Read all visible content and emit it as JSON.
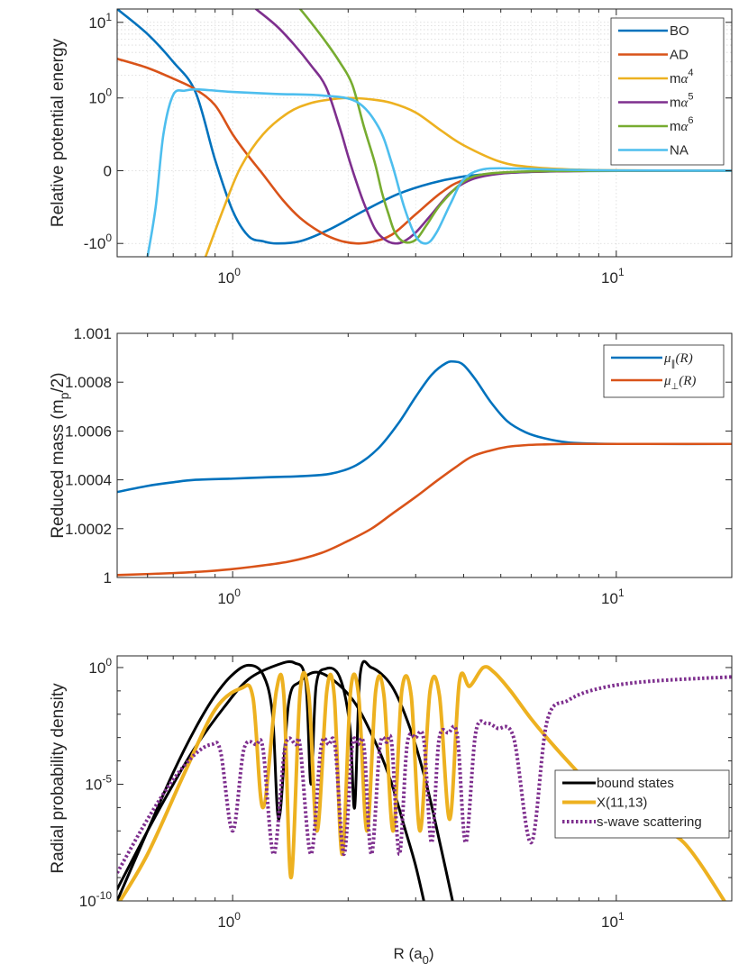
{
  "chart_data": [
    {
      "type": "line",
      "title": "",
      "xlabel": "",
      "ylabel": "Relative potential energy",
      "xscale": "log",
      "xlim": [
        0.5,
        20
      ],
      "yscale": "symlog",
      "ylim": [
        -1.5,
        15
      ],
      "grid": true,
      "legend_position": "top-right",
      "x_ticks": [
        {
          "value": 1,
          "base": "10",
          "exp": "0"
        },
        {
          "value": 10,
          "base": "10",
          "exp": "1"
        }
      ],
      "y_ticks": [
        {
          "value": -1,
          "label": "-10",
          "exp": "0"
        },
        {
          "value": 0,
          "label": "0",
          "exp": ""
        },
        {
          "value": 1,
          "label": "10",
          "exp": "0"
        },
        {
          "value": 10,
          "label": "10",
          "exp": "1"
        }
      ],
      "series": [
        {
          "name": "BO",
          "color": "#0072bd",
          "x": [
            0.5,
            0.6,
            0.7,
            0.8,
            0.9,
            1.0,
            1.1,
            1.2,
            1.3,
            1.5,
            1.8,
            2.2,
            2.7,
            3.3,
            4.0,
            5.0,
            6.5,
            8.5,
            12,
            20
          ],
          "y": [
            15,
            7,
            3,
            1.2,
            0.15,
            -0.55,
            -0.9,
            -0.97,
            -1.0,
            -0.97,
            -0.8,
            -0.55,
            -0.32,
            -0.17,
            -0.08,
            -0.035,
            -0.012,
            -0.004,
            -0.001,
            0
          ]
        },
        {
          "name": "AD",
          "color": "#d95319",
          "x": [
            0.5,
            0.6,
            0.7,
            0.8,
            0.9,
            1.0,
            1.1,
            1.2,
            1.35,
            1.5,
            1.7,
            1.9,
            2.1,
            2.3,
            2.6,
            3.0,
            3.5,
            4.0,
            5.0,
            6.5,
            8.5,
            12,
            20
          ],
          "y": [
            3.3,
            2.5,
            1.8,
            1.3,
            0.9,
            0.5,
            0.2,
            -0.05,
            -0.4,
            -0.65,
            -0.85,
            -0.96,
            -1.0,
            -0.98,
            -0.88,
            -0.6,
            -0.3,
            -0.13,
            -0.035,
            -0.01,
            -0.003,
            -0.001,
            0
          ]
        },
        {
          "name": "mα4",
          "color": "#edb120",
          "x": [
            0.85,
            0.95,
            1.05,
            1.2,
            1.4,
            1.6,
            1.8,
            2.0,
            2.3,
            2.6,
            3.0,
            3.5,
            4.0,
            5.0,
            6.0,
            7.5,
            10,
            14,
            20
          ],
          "y": [
            -1.5,
            -0.5,
            0.05,
            0.5,
            0.8,
            0.93,
            0.98,
            1.0,
            0.98,
            0.93,
            0.8,
            0.55,
            0.35,
            0.12,
            0.05,
            0.018,
            0.005,
            0.001,
            0
          ]
        },
        {
          "name": "mα5",
          "color": "#7e2f8e",
          "x": [
            1.15,
            1.3,
            1.45,
            1.6,
            1.75,
            1.9,
            2.0,
            2.1,
            2.2,
            2.35,
            2.5,
            2.65,
            2.8,
            3.0,
            3.3,
            3.7,
            4.2,
            5.0,
            6.5,
            9,
            13,
            20
          ],
          "y": [
            15,
            9,
            5,
            2.7,
            1.4,
            0.6,
            0.2,
            -0.15,
            -0.45,
            -0.8,
            -0.95,
            -1.0,
            -0.97,
            -0.85,
            -0.6,
            -0.3,
            -0.12,
            -0.04,
            -0.01,
            -0.002,
            0,
            0
          ]
        },
        {
          "name": "mα6",
          "color": "#77ac30",
          "x": [
            1.5,
            1.6,
            1.75,
            1.9,
            2.05,
            2.2,
            2.35,
            2.45,
            2.55,
            2.65,
            2.8,
            3.0,
            3.2,
            3.5,
            4.0,
            4.5,
            5.5,
            7,
            10,
            20
          ],
          "y": [
            15,
            10,
            5.5,
            3,
            1.5,
            0.6,
            0.1,
            -0.3,
            -0.6,
            -0.85,
            -0.98,
            -0.95,
            -0.75,
            -0.45,
            -0.15,
            -0.05,
            -0.015,
            -0.004,
            -0.001,
            0
          ]
        },
        {
          "name": "NA",
          "color": "#4dbeee",
          "x": [
            0.6,
            0.63,
            0.66,
            0.7,
            0.75,
            0.8,
            0.9,
            1.0,
            1.3,
            1.7,
            2.1,
            2.4,
            2.6,
            2.8,
            3.0,
            3.2,
            3.4,
            3.7,
            4.0,
            4.5,
            5.5,
            7,
            10,
            20
          ],
          "y": [
            -1.5,
            -0.5,
            0.5,
            1.1,
            1.25,
            1.3,
            1.25,
            1.2,
            1.13,
            1.08,
            0.95,
            0.6,
            0.1,
            -0.5,
            -0.9,
            -1.0,
            -0.85,
            -0.45,
            -0.12,
            0.02,
            0.03,
            0.015,
            0.004,
            0
          ]
        }
      ]
    },
    {
      "type": "line",
      "title": "",
      "xlabel": "",
      "ylabel": "Reduced mass (m",
      "ylabel_sub": "p",
      "ylabel_tail": "/2)",
      "xscale": "log",
      "xlim": [
        0.5,
        20
      ],
      "yscale": "linear",
      "ylim": [
        1.0,
        1.001
      ],
      "grid": false,
      "legend_position": "top-right",
      "x_ticks": [
        {
          "value": 1,
          "base": "10",
          "exp": "0"
        },
        {
          "value": 10,
          "base": "10",
          "exp": "1"
        }
      ],
      "y_ticks": [
        {
          "value": 1.0,
          "label": "1"
        },
        {
          "value": 1.0002,
          "label": "1.0002"
        },
        {
          "value": 1.0004,
          "label": "1.0004"
        },
        {
          "value": 1.0006,
          "label": "1.0006"
        },
        {
          "value": 1.0008,
          "label": "1.0008"
        },
        {
          "value": 1.001,
          "label": "1.001"
        }
      ],
      "series": [
        {
          "name": "μ∥(R)",
          "symbol": "μ",
          "sub": "∥",
          "arg": "(R)",
          "color": "#0072bd",
          "x": [
            0.5,
            0.6,
            0.7,
            0.8,
            1.0,
            1.2,
            1.5,
            1.8,
            2.1,
            2.4,
            2.7,
            3.0,
            3.3,
            3.6,
            3.8,
            4.0,
            4.3,
            4.7,
            5.2,
            5.8,
            6.5,
            7.5,
            9,
            12,
            20
          ],
          "y": [
            1.00035,
            1.000375,
            1.00039,
            1.0004,
            1.000405,
            1.00041,
            1.000415,
            1.000425,
            1.00046,
            1.00053,
            1.00063,
            1.00074,
            1.00083,
            1.000878,
            1.000884,
            1.00087,
            1.00081,
            1.00072,
            1.00064,
            1.000595,
            1.00057,
            1.000553,
            1.000548,
            1.000547,
            1.000547
          ]
        },
        {
          "name": "μ⊥(R)",
          "symbol": "μ",
          "sub": "⊥",
          "arg": "(R)",
          "color": "#d95319",
          "x": [
            0.5,
            0.7,
            0.9,
            1.1,
            1.4,
            1.7,
            2.0,
            2.3,
            2.6,
            3.0,
            3.4,
            3.8,
            4.2,
            4.7,
            5.2,
            5.8,
            6.5,
            7.5,
            9,
            12,
            20
          ],
          "y": [
            1.00001,
            1.000018,
            1.000028,
            1.000042,
            1.000065,
            1.0001,
            1.00015,
            1.0002,
            1.00026,
            1.00033,
            1.000395,
            1.00045,
            1.000495,
            1.00052,
            1.000535,
            1.000542,
            1.000545,
            1.000547,
            1.000547,
            1.000547,
            1.000547
          ]
        }
      ]
    },
    {
      "type": "line",
      "title": "",
      "xlabel": "R (a",
      "xlabel_sub": "0",
      "xlabel_tail": ")",
      "ylabel": "Radial probability density",
      "xscale": "log",
      "xlim": [
        0.5,
        20
      ],
      "yscale": "log",
      "ylim_log10": [
        -10,
        0.5
      ],
      "grid": false,
      "legend_position": "bottom-right",
      "x_ticks": [
        {
          "value": 1,
          "base": "10",
          "exp": "0"
        },
        {
          "value": 10,
          "base": "10",
          "exp": "1"
        }
      ],
      "y_ticks": [
        {
          "log10": 0,
          "base": "10",
          "exp": "0"
        },
        {
          "log10": -5,
          "base": "10",
          "exp": "-5"
        },
        {
          "log10": -10,
          "base": "10",
          "exp": "-10"
        }
      ],
      "series": [
        {
          "name": "bound states",
          "color": "#000000",
          "style": "solid",
          "width": 3,
          "legend": true,
          "x": [
            0.5,
            0.6,
            0.7,
            0.8,
            0.9,
            1.0,
            1.1,
            1.2,
            1.27,
            1.32,
            1.4,
            1.5,
            1.65,
            1.85,
            2.1,
            2.4,
            2.6,
            2.8,
            3.0,
            3.2
          ],
          "ylog": [
            -10,
            -7,
            -4.5,
            -2.6,
            -1.2,
            -0.3,
            0.1,
            -0.3,
            -2.0,
            -6.5,
            -1.5,
            -0.6,
            -0.2,
            -0.6,
            -1.6,
            -3.5,
            -5.0,
            -6.8,
            -8.5,
            -10.5
          ]
        },
        {
          "name": "bound states (b)",
          "color": "#000000",
          "style": "solid",
          "width": 3,
          "legend": false,
          "x": [
            0.5,
            0.6,
            0.7,
            0.8,
            0.95,
            1.1,
            1.3,
            1.45,
            1.55,
            1.6,
            1.65,
            1.75,
            1.9,
            2.02,
            2.08,
            2.15,
            2.3,
            2.6,
            2.9,
            3.2,
            3.5,
            3.8
          ],
          "ylog": [
            -9.5,
            -7.0,
            -5.0,
            -3.4,
            -1.7,
            -0.5,
            0.1,
            0.2,
            -0.6,
            -5.0,
            -0.8,
            -0.05,
            -0.4,
            -2.5,
            -6.0,
            -0.3,
            0.0,
            -0.8,
            -2.6,
            -5.0,
            -7.8,
            -10.5
          ]
        },
        {
          "name": "X(11,13)",
          "color": "#edb120",
          "style": "solid",
          "width": 4,
          "legend": true,
          "x": [
            0.5,
            0.6,
            0.75,
            0.9,
            1.05,
            1.13,
            1.2,
            1.3,
            1.36,
            1.42,
            1.5,
            1.58,
            1.66,
            1.76,
            1.84,
            1.93,
            2.03,
            2.13,
            2.24,
            2.36,
            2.48,
            2.62,
            2.76,
            2.92,
            3.08,
            3.27,
            3.46,
            3.68,
            3.9,
            4.15,
            4.5,
            4.8,
            5.3,
            6.0,
            7.0,
            8.5,
            10,
            12,
            15,
            20
          ],
          "ylog": [
            -10.2,
            -8.0,
            -4.5,
            -1.8,
            -0.9,
            -1.3,
            -6.0,
            -1.0,
            -1.2,
            -9.0,
            -1.0,
            -1.2,
            -7.0,
            -1.0,
            -1.2,
            -8.0,
            -1.0,
            -1.2,
            -7.0,
            -1.0,
            -1.2,
            -7.0,
            -1.0,
            -1.2,
            -7.0,
            -1.0,
            -1.2,
            -6.5,
            -0.6,
            -0.8,
            0.0,
            -0.2,
            -1.0,
            -2.2,
            -3.5,
            -5.0,
            -6.2,
            -6.8,
            -7.5,
            -10.5
          ]
        },
        {
          "name": "s-wave scattering",
          "color": "#7e2f8e",
          "style": "dotted",
          "width": 4,
          "legend": true,
          "x": [
            0.5,
            0.6,
            0.7,
            0.8,
            0.88,
            0.93,
            1.0,
            1.07,
            1.15,
            1.2,
            1.28,
            1.37,
            1.46,
            1.5,
            1.6,
            1.7,
            1.78,
            1.85,
            1.95,
            2.05,
            2.12,
            2.2,
            2.3,
            2.42,
            2.52,
            2.6,
            2.72,
            2.85,
            3.0,
            3.15,
            3.3,
            3.45,
            3.65,
            3.85,
            4.05,
            4.3,
            4.6,
            4.9,
            5.4,
            6.0,
            6.6,
            7.5,
            9,
            12,
            20
          ],
          "ylog": [
            -8.8,
            -6.5,
            -4.8,
            -3.7,
            -3.3,
            -3.6,
            -7.0,
            -3.5,
            -3.3,
            -3.5,
            -8.0,
            -3.4,
            -3.3,
            -3.4,
            -8.0,
            -3.4,
            -3.3,
            -3.4,
            -8.0,
            -3.4,
            -3.3,
            -3.4,
            -8.0,
            -3.4,
            -3.2,
            -3.3,
            -8.0,
            -3.3,
            -3.0,
            -3.1,
            -7.5,
            -3.1,
            -2.8,
            -2.9,
            -7.5,
            -2.8,
            -2.4,
            -2.6,
            -3.0,
            -7.5,
            -2.3,
            -1.4,
            -0.9,
            -0.6,
            -0.4
          ]
        }
      ]
    }
  ],
  "legends": [
    {
      "entries": [
        {
          "kind": "plain",
          "text": "BO"
        },
        {
          "kind": "plain",
          "text": "AD"
        },
        {
          "kind": "malpha",
          "m": "m",
          "alpha": "α",
          "exp": "4"
        },
        {
          "kind": "malpha",
          "m": "m",
          "alpha": "α",
          "exp": "5"
        },
        {
          "kind": "malpha",
          "m": "m",
          "alpha": "α",
          "exp": "6"
        },
        {
          "kind": "plain",
          "text": "NA"
        }
      ]
    },
    {
      "entries": [
        {
          "kind": "mu",
          "mu": "μ",
          "sub": "∥",
          "arg": "(R)"
        },
        {
          "kind": "mu",
          "mu": "μ",
          "sub": "⊥",
          "arg": "(R)"
        }
      ]
    },
    {
      "entries": [
        {
          "kind": "plain",
          "text": "bound states"
        },
        {
          "kind": "plain",
          "text": "X(11,13)"
        },
        {
          "kind": "plain",
          "text": "s-wave scattering"
        }
      ]
    }
  ]
}
